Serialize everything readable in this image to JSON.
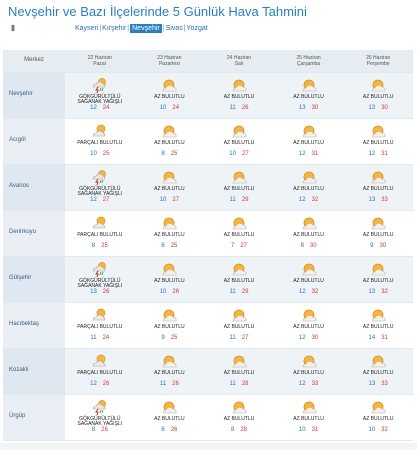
{
  "page": {
    "title": "Nevşehir ve Bazı İlçelerinde 5 Günlük Hava Tahmini",
    "menu_icon": "list-icon",
    "menu_glyph": "Ⅱ"
  },
  "nav": {
    "links": [
      {
        "label": "Kayseri",
        "active": false
      },
      {
        "label": "Kırşehir",
        "active": false
      },
      {
        "label": "Nevşehir",
        "active": true
      },
      {
        "label": "Sivas",
        "active": false
      },
      {
        "label": "Yozgat",
        "active": false
      }
    ],
    "separator": "|"
  },
  "table": {
    "header_label": "Merkez",
    "days": [
      {
        "date": "22 Haziran",
        "weekday": "Pazar"
      },
      {
        "date": "23 Haziran",
        "weekday": "Pazartesi"
      },
      {
        "date": "24 Haziran",
        "weekday": "Salı"
      },
      {
        "date": "25 Haziran",
        "weekday": "Çarşamba"
      },
      {
        "date": "26 Haziran",
        "weekday": "Perşembe"
      }
    ],
    "rows": [
      {
        "city": "Nevşehir",
        "cells": [
          {
            "icon": "thunderstorm-icon",
            "desc1": "GÖKGÜRÜLTÜLÜ",
            "desc2": "SAĞANAK YAĞIŞLI",
            "lo": "12",
            "hi": "24"
          },
          {
            "icon": "partly-cloudy-icon",
            "desc1": "AZ BULUTLU",
            "desc2": "",
            "lo": "10",
            "hi": "24"
          },
          {
            "icon": "partly-cloudy-icon",
            "desc1": "AZ BULUTLU",
            "desc2": "",
            "lo": "11",
            "hi": "26"
          },
          {
            "icon": "partly-cloudy-icon",
            "desc1": "AZ BULUTLU",
            "desc2": "",
            "lo": "13",
            "hi": "30"
          },
          {
            "icon": "partly-cloudy-icon",
            "desc1": "AZ BULUTLU",
            "desc2": "",
            "lo": "13",
            "hi": "30"
          }
        ]
      },
      {
        "city": "Acıgöl",
        "cells": [
          {
            "icon": "cloudy-sun-icon",
            "desc1": "PARÇALI BULUTLU",
            "desc2": "",
            "lo": "10",
            "hi": "25"
          },
          {
            "icon": "partly-cloudy-icon",
            "desc1": "AZ BULUTLU",
            "desc2": "",
            "lo": "8",
            "hi": "25"
          },
          {
            "icon": "partly-cloudy-icon",
            "desc1": "AZ BULUTLU",
            "desc2": "",
            "lo": "10",
            "hi": "27"
          },
          {
            "icon": "partly-cloudy-icon",
            "desc1": "AZ BULUTLU",
            "desc2": "",
            "lo": "12",
            "hi": "31"
          },
          {
            "icon": "partly-cloudy-icon",
            "desc1": "AZ BULUTLU",
            "desc2": "",
            "lo": "12",
            "hi": "31"
          }
        ]
      },
      {
        "city": "Avanos",
        "cells": [
          {
            "icon": "thunderstorm-icon",
            "desc1": "GÖKGÜRÜLTÜLÜ",
            "desc2": "SAĞANAK YAĞIŞLI",
            "lo": "12",
            "hi": "27"
          },
          {
            "icon": "partly-cloudy-icon",
            "desc1": "AZ BULUTLU",
            "desc2": "",
            "lo": "10",
            "hi": "27"
          },
          {
            "icon": "partly-cloudy-icon",
            "desc1": "AZ BULUTLU",
            "desc2": "",
            "lo": "11",
            "hi": "29"
          },
          {
            "icon": "partly-cloudy-icon",
            "desc1": "AZ BULUTLU",
            "desc2": "",
            "lo": "12",
            "hi": "32"
          },
          {
            "icon": "partly-cloudy-icon",
            "desc1": "AZ BULUTLU",
            "desc2": "",
            "lo": "13",
            "hi": "33"
          }
        ]
      },
      {
        "city": "Derinkuyu",
        "cells": [
          {
            "icon": "cloudy-sun-icon",
            "desc1": "PARÇALI BULUTLU",
            "desc2": "",
            "lo": "8",
            "hi": "25"
          },
          {
            "icon": "partly-cloudy-icon",
            "desc1": "AZ BULUTLU",
            "desc2": "",
            "lo": "6",
            "hi": "25"
          },
          {
            "icon": "partly-cloudy-icon",
            "desc1": "AZ BULUTLU",
            "desc2": "",
            "lo": "7",
            "hi": "27"
          },
          {
            "icon": "partly-cloudy-icon",
            "desc1": "AZ BULUTLU",
            "desc2": "",
            "lo": "8",
            "hi": "30"
          },
          {
            "icon": "partly-cloudy-icon",
            "desc1": "AZ BULUTLU",
            "desc2": "",
            "lo": "9",
            "hi": "30"
          }
        ]
      },
      {
        "city": "Gülşehir",
        "cells": [
          {
            "icon": "thunderstorm-icon",
            "desc1": "GÖKGÜRÜLTÜLÜ",
            "desc2": "SAĞANAK YAĞIŞLI",
            "lo": "13",
            "hi": "26"
          },
          {
            "icon": "partly-cloudy-icon",
            "desc1": "AZ BULUTLU",
            "desc2": "",
            "lo": "10",
            "hi": "26"
          },
          {
            "icon": "partly-cloudy-icon",
            "desc1": "AZ BULUTLU",
            "desc2": "",
            "lo": "11",
            "hi": "29"
          },
          {
            "icon": "partly-cloudy-icon",
            "desc1": "AZ BULUTLU",
            "desc2": "",
            "lo": "12",
            "hi": "32"
          },
          {
            "icon": "partly-cloudy-icon",
            "desc1": "AZ BULUTLU",
            "desc2": "",
            "lo": "13",
            "hi": "32"
          }
        ]
      },
      {
        "city": "Hacıbektaş",
        "cells": [
          {
            "icon": "cloudy-sun-icon",
            "desc1": "PARÇALI BULUTLU",
            "desc2": "",
            "lo": "11",
            "hi": "24"
          },
          {
            "icon": "partly-cloudy-icon",
            "desc1": "AZ BULUTLU",
            "desc2": "",
            "lo": "9",
            "hi": "25"
          },
          {
            "icon": "partly-cloudy-icon",
            "desc1": "AZ BULUTLU",
            "desc2": "",
            "lo": "11",
            "hi": "27"
          },
          {
            "icon": "partly-cloudy-icon",
            "desc1": "AZ BULUTLU",
            "desc2": "",
            "lo": "12",
            "hi": "30"
          },
          {
            "icon": "partly-cloudy-icon",
            "desc1": "AZ BULUTLU",
            "desc2": "",
            "lo": "14",
            "hi": "31"
          }
        ]
      },
      {
        "city": "Kozaklı",
        "cells": [
          {
            "icon": "cloudy-sun-icon",
            "desc1": "PARÇALI BULUTLU",
            "desc2": "",
            "lo": "12",
            "hi": "26"
          },
          {
            "icon": "partly-cloudy-icon",
            "desc1": "AZ BULUTLU",
            "desc2": "",
            "lo": "11",
            "hi": "26"
          },
          {
            "icon": "partly-cloudy-icon",
            "desc1": "AZ BULUTLU",
            "desc2": "",
            "lo": "11",
            "hi": "28"
          },
          {
            "icon": "partly-cloudy-icon",
            "desc1": "AZ BULUTLU",
            "desc2": "",
            "lo": "12",
            "hi": "33"
          },
          {
            "icon": "partly-cloudy-icon",
            "desc1": "AZ BULUTLU",
            "desc2": "",
            "lo": "13",
            "hi": "33"
          }
        ]
      },
      {
        "city": "Ürgüp",
        "cells": [
          {
            "icon": "thunderstorm-icon",
            "desc1": "GÖKGÜRÜLTÜLÜ",
            "desc2": "SAĞANAK YAĞIŞLI",
            "lo": "8",
            "hi": "26"
          },
          {
            "icon": "partly-cloudy-icon",
            "desc1": "AZ BULUTLU",
            "desc2": "",
            "lo": "6",
            "hi": "26"
          },
          {
            "icon": "partly-cloudy-icon",
            "desc1": "AZ BULUTLU",
            "desc2": "",
            "lo": "8",
            "hi": "28"
          },
          {
            "icon": "partly-cloudy-icon",
            "desc1": "AZ BULUTLU",
            "desc2": "",
            "lo": "10",
            "hi": "31"
          },
          {
            "icon": "partly-cloudy-icon",
            "desc1": "AZ BULUTLU",
            "desc2": "",
            "lo": "10",
            "hi": "32"
          }
        ]
      }
    ]
  },
  "colors": {
    "title": "#2a7fc0",
    "link": "#2a6fb0",
    "active_bg": "#2a7fc0",
    "low_temp": "#2a6fb0",
    "high_temp": "#d23a2a",
    "header_bg": "#e5ecf2",
    "row_shade": "#eef3f8"
  }
}
